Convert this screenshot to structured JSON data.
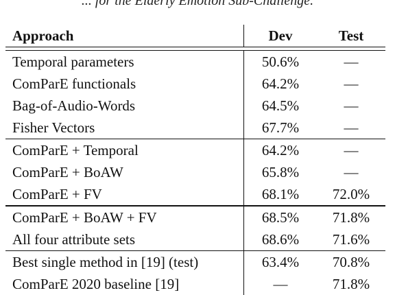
{
  "caption": "... for the Elderly Emotion Sub-Challenge.",
  "table": {
    "headers": {
      "approach": "Approach",
      "dev": "Dev",
      "test": "Test"
    },
    "groups": [
      {
        "rows": [
          {
            "approach": "Temporal parameters",
            "dev": "50.6%",
            "test": "—"
          },
          {
            "approach": "ComParE functionals",
            "dev": "64.2%",
            "test": "—"
          },
          {
            "approach": "Bag-of-Audio-Words",
            "dev": "64.5%",
            "test": "—"
          },
          {
            "approach": "Fisher Vectors",
            "dev": "67.7%",
            "test": "—"
          }
        ]
      },
      {
        "rows": [
          {
            "approach": "ComParE + Temporal",
            "dev": "64.2%",
            "test": "—"
          },
          {
            "approach": "ComParE + BoAW",
            "dev": "65.8%",
            "test": "—"
          },
          {
            "approach": "ComParE + FV",
            "dev": "68.1%",
            "test": "72.0%"
          }
        ]
      },
      {
        "rows": [
          {
            "approach": "ComParE + BoAW + FV",
            "dev": "68.5%",
            "test": "71.8%"
          },
          {
            "approach": "All four attribute sets",
            "dev": "68.6%",
            "test": "71.6%"
          }
        ]
      },
      {
        "rows": [
          {
            "approach": "Best single method in [19] (test)",
            "dev": "63.4%",
            "test": "70.8%"
          },
          {
            "approach": "ComParE 2020 baseline [19]",
            "dev": "—",
            "test": "71.8%"
          }
        ]
      }
    ]
  }
}
